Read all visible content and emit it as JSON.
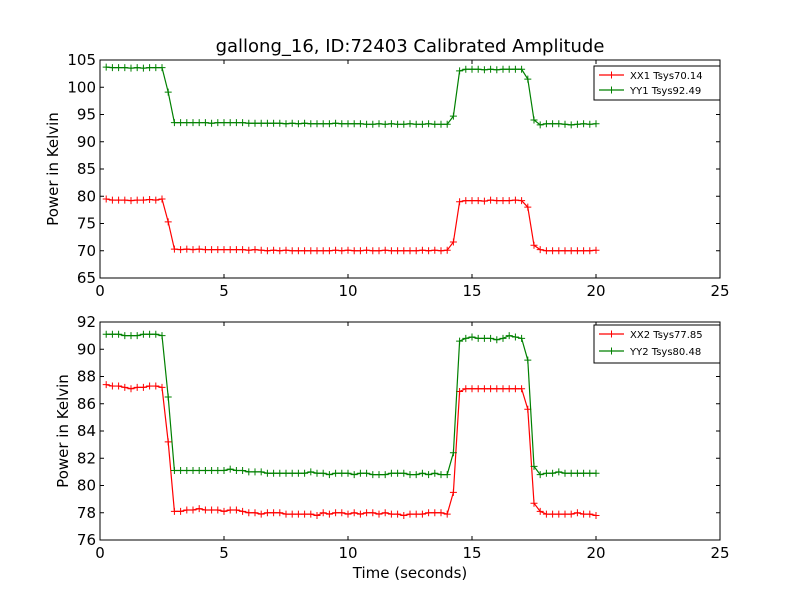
{
  "figure": {
    "title": "gallong_16, ID:72403 Calibrated Amplitude",
    "xlabel": "Time (seconds)"
  },
  "chart_data": [
    {
      "type": "line",
      "title": "gallong_16, ID:72403 Calibrated Amplitude",
      "xlabel": "",
      "ylabel": "Power in Kelvin",
      "xlim": [
        0,
        25
      ],
      "ylim": [
        65,
        105
      ],
      "xticks": [
        "0",
        "5",
        "10",
        "15",
        "20",
        "25"
      ],
      "yticks": [
        "65",
        "70",
        "75",
        "80",
        "85",
        "90",
        "95",
        "100",
        "105"
      ],
      "grid": false,
      "legend_position": "top-right",
      "x": [
        0.25,
        0.5,
        0.75,
        1.0,
        1.25,
        1.5,
        1.75,
        2.0,
        2.25,
        2.5,
        2.75,
        3.0,
        3.25,
        3.5,
        3.75,
        4.0,
        4.25,
        4.5,
        4.75,
        5.0,
        5.25,
        5.5,
        5.75,
        6.0,
        6.25,
        6.5,
        6.75,
        7.0,
        7.25,
        7.5,
        7.75,
        8.0,
        8.25,
        8.5,
        8.75,
        9.0,
        9.25,
        9.5,
        9.75,
        10.0,
        10.25,
        10.5,
        10.75,
        11.0,
        11.25,
        11.5,
        11.75,
        12.0,
        12.25,
        12.5,
        12.75,
        13.0,
        13.25,
        13.5,
        13.75,
        14.0,
        14.25,
        14.5,
        14.75,
        15.0,
        15.25,
        15.5,
        15.75,
        16.0,
        16.25,
        16.5,
        16.75,
        17.0,
        17.25,
        17.5,
        17.75,
        18.0,
        18.25,
        18.5,
        18.75,
        19.0,
        19.25,
        19.5,
        19.75,
        20.0
      ],
      "series": [
        {
          "name": "XX1 Tsys70.14",
          "color": "#ff0000",
          "values": [
            79.5,
            79.3,
            79.3,
            79.3,
            79.2,
            79.3,
            79.3,
            79.4,
            79.3,
            79.5,
            75.3,
            70.3,
            70.2,
            70.3,
            70.2,
            70.3,
            70.2,
            70.2,
            70.2,
            70.2,
            70.2,
            70.2,
            70.2,
            70.1,
            70.2,
            70.1,
            70.0,
            70.1,
            70.0,
            70.1,
            70.0,
            70.0,
            70.0,
            70.0,
            70.0,
            70.0,
            70.0,
            70.1,
            70.0,
            70.1,
            70.0,
            70.0,
            70.1,
            70.0,
            70.0,
            70.1,
            70.0,
            70.0,
            70.0,
            70.0,
            70.0,
            70.1,
            70.0,
            70.1,
            70.0,
            70.1,
            71.6,
            79.0,
            79.2,
            79.2,
            79.2,
            79.1,
            79.3,
            79.2,
            79.2,
            79.2,
            79.3,
            79.2,
            78.0,
            71.0,
            70.2,
            70.0,
            70.0,
            70.0,
            70.0,
            70.0,
            70.0,
            70.0,
            70.0,
            70.1
          ]
        },
        {
          "name": "YY1 Tsys92.49",
          "color": "#008000",
          "values": [
            103.7,
            103.6,
            103.6,
            103.6,
            103.5,
            103.6,
            103.5,
            103.6,
            103.6,
            103.6,
            99.1,
            93.5,
            93.5,
            93.5,
            93.5,
            93.5,
            93.5,
            93.4,
            93.5,
            93.5,
            93.5,
            93.5,
            93.5,
            93.4,
            93.4,
            93.4,
            93.4,
            93.4,
            93.4,
            93.3,
            93.4,
            93.3,
            93.4,
            93.3,
            93.3,
            93.3,
            93.3,
            93.4,
            93.3,
            93.3,
            93.3,
            93.3,
            93.2,
            93.2,
            93.3,
            93.2,
            93.3,
            93.2,
            93.2,
            93.3,
            93.2,
            93.2,
            93.3,
            93.2,
            93.2,
            93.2,
            94.7,
            103.0,
            103.3,
            103.3,
            103.3,
            103.2,
            103.3,
            103.2,
            103.3,
            103.3,
            103.3,
            103.3,
            101.5,
            94.0,
            93.1,
            93.3,
            93.3,
            93.3,
            93.2,
            93.1,
            93.2,
            93.3,
            93.2,
            93.3
          ]
        }
      ]
    },
    {
      "type": "line",
      "title": "",
      "xlabel": "Time (seconds)",
      "ylabel": "Power in Kelvin",
      "xlim": [
        0,
        25
      ],
      "ylim": [
        76,
        92
      ],
      "xticks": [
        "0",
        "5",
        "10",
        "15",
        "20",
        "25"
      ],
      "yticks": [
        "76",
        "78",
        "80",
        "82",
        "84",
        "86",
        "88",
        "90",
        "92"
      ],
      "grid": false,
      "legend_position": "top-right",
      "x": [
        0.25,
        0.5,
        0.75,
        1.0,
        1.25,
        1.5,
        1.75,
        2.0,
        2.25,
        2.5,
        2.75,
        3.0,
        3.25,
        3.5,
        3.75,
        4.0,
        4.25,
        4.5,
        4.75,
        5.0,
        5.25,
        5.5,
        5.75,
        6.0,
        6.25,
        6.5,
        6.75,
        7.0,
        7.25,
        7.5,
        7.75,
        8.0,
        8.25,
        8.5,
        8.75,
        9.0,
        9.25,
        9.5,
        9.75,
        10.0,
        10.25,
        10.5,
        10.75,
        11.0,
        11.25,
        11.5,
        11.75,
        12.0,
        12.25,
        12.5,
        12.75,
        13.0,
        13.25,
        13.5,
        13.75,
        14.0,
        14.25,
        14.5,
        14.75,
        15.0,
        15.25,
        15.5,
        15.75,
        16.0,
        16.25,
        16.5,
        16.75,
        17.0,
        17.25,
        17.5,
        17.75,
        18.0,
        18.25,
        18.5,
        18.75,
        19.0,
        19.25,
        19.5,
        19.75,
        20.0
      ],
      "series": [
        {
          "name": "XX2 Tsys77.85",
          "color": "#ff0000",
          "values": [
            87.4,
            87.3,
            87.3,
            87.2,
            87.1,
            87.2,
            87.2,
            87.3,
            87.3,
            87.2,
            83.2,
            78.1,
            78.1,
            78.2,
            78.2,
            78.3,
            78.2,
            78.2,
            78.2,
            78.1,
            78.2,
            78.2,
            78.1,
            78.0,
            78.0,
            77.9,
            78.0,
            78.0,
            78.0,
            77.9,
            77.9,
            77.9,
            77.9,
            77.9,
            77.8,
            78.0,
            77.9,
            78.0,
            78.0,
            77.9,
            78.0,
            77.9,
            78.0,
            78.0,
            77.9,
            78.0,
            77.9,
            77.9,
            77.8,
            77.9,
            77.9,
            77.9,
            78.0,
            78.0,
            78.0,
            77.9,
            79.5,
            86.9,
            87.1,
            87.1,
            87.1,
            87.1,
            87.1,
            87.1,
            87.1,
            87.1,
            87.1,
            87.1,
            85.6,
            78.7,
            78.1,
            77.9,
            77.9,
            77.9,
            77.9,
            77.9,
            78.0,
            77.9,
            77.9,
            77.8
          ]
        },
        {
          "name": "YY2 Tsys80.48",
          "color": "#008000",
          "values": [
            91.1,
            91.1,
            91.1,
            91.0,
            91.0,
            91.0,
            91.1,
            91.1,
            91.1,
            91.0,
            86.5,
            81.1,
            81.1,
            81.1,
            81.1,
            81.1,
            81.1,
            81.1,
            81.1,
            81.1,
            81.2,
            81.1,
            81.1,
            81.0,
            81.0,
            81.0,
            80.9,
            80.9,
            80.9,
            80.9,
            80.9,
            80.9,
            80.9,
            81.0,
            80.9,
            80.9,
            80.8,
            80.9,
            80.9,
            80.9,
            80.8,
            80.9,
            80.9,
            80.8,
            80.8,
            80.8,
            80.9,
            80.9,
            80.9,
            80.8,
            80.8,
            80.9,
            80.8,
            80.9,
            80.8,
            80.8,
            82.4,
            90.6,
            90.8,
            90.9,
            90.8,
            90.8,
            90.8,
            90.7,
            90.8,
            91.0,
            90.9,
            90.8,
            89.2,
            81.4,
            80.8,
            80.9,
            80.9,
            81.0,
            80.9,
            80.9,
            80.9,
            80.9,
            80.9,
            80.9
          ]
        }
      ]
    }
  ]
}
